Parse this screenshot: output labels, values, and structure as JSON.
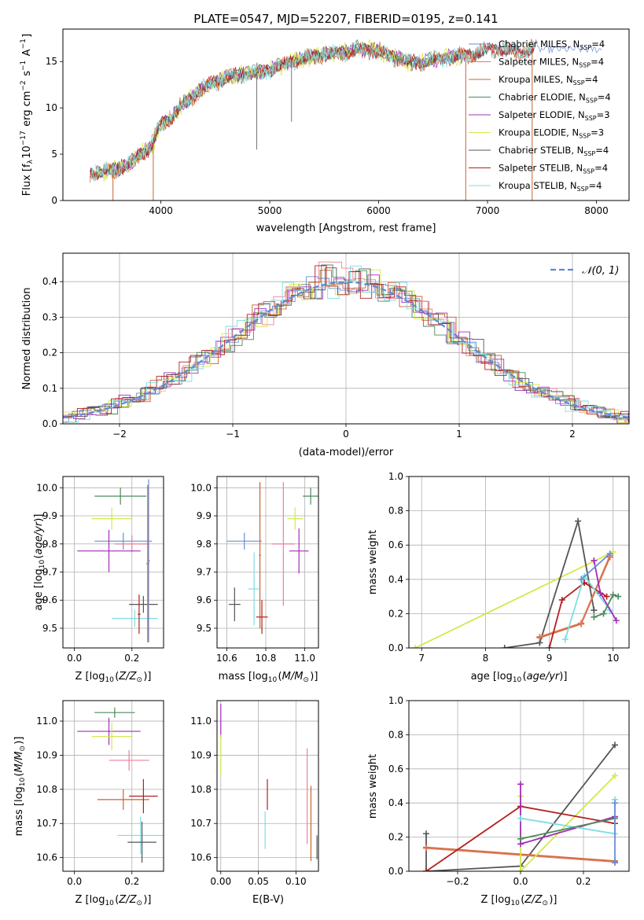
{
  "figure": {
    "title": "PLATE=0547, MJD=52207, FIBERID=0195, z=0.141"
  },
  "colors": {
    "Chabrier MILES": "#6b8ed6",
    "Salpeter MILES": "#e07a5f",
    "Kroupa MILES": "#c8642c",
    "Chabrier ELODIE": "#4c8a5a",
    "Salpeter ELODIE": "#a22fb8",
    "Kroupa ELODIE": "#d4e84a",
    "Chabrier STELIB": "#555555",
    "Salpeter STELIB": "#b22020",
    "Kroupa STELIB": "#7fdde0",
    "Salpeter MILES light": "#ef7f9b",
    "gauss": "#5b8ad6"
  },
  "chart_data": [
    {
      "id": "spectrum",
      "type": "line",
      "xlabel": "wavelength [Angstrom, rest frame]",
      "ylabel": "Flux [f",
      "ylabel_parts": [
        "Flux [f",
        "λ",
        "10",
        "−17",
        " erg cm",
        "−2",
        " s",
        "−1",
        " A",
        "−1",
        "]"
      ],
      "xlim": [
        3100,
        8300
      ],
      "ylim": [
        0,
        18.5
      ],
      "xticks": [
        4000,
        5000,
        6000,
        7000,
        8000
      ],
      "yticks": [
        0,
        5,
        10,
        15
      ],
      "grid": false,
      "legend_placement": "top-right",
      "legend": [
        {
          "name": "Chabrier MILES",
          "N": "4"
        },
        {
          "name": "Salpeter MILES",
          "N": "4"
        },
        {
          "name": "Kroupa MILES",
          "N": "4"
        },
        {
          "name": "Chabrier ELODIE",
          "N": "4"
        },
        {
          "name": "Salpeter ELODIE",
          "N": "3"
        },
        {
          "name": "Kroupa ELODIE",
          "N": "3"
        },
        {
          "name": "Chabrier STELIB",
          "N": "4"
        },
        {
          "name": "Salpeter STELIB",
          "N": "4"
        },
        {
          "name": "Kroupa STELIB",
          "N": "4"
        }
      ],
      "nssp_label": "N",
      "nssp_sub": "SSP",
      "continuum": {
        "x": [
          3350,
          3450,
          3600,
          3700,
          3800,
          3900,
          4000,
          4100,
          4200,
          4300,
          4400,
          4500,
          4600,
          4700,
          4800,
          4900,
          5000,
          5100,
          5200,
          5300,
          5400,
          5500,
          5600,
          5700,
          5800,
          5900,
          6000,
          6100,
          6200,
          6300,
          6400,
          6500,
          6600,
          6700,
          6800,
          6900,
          7000,
          7100,
          7200,
          7300,
          7400,
          7450
        ],
        "y": [
          3.0,
          3.0,
          3.5,
          3.8,
          5.0,
          5.6,
          8.2,
          9.0,
          10.4,
          11.3,
          12.2,
          12.8,
          13.3,
          13.5,
          13.8,
          13.8,
          14.1,
          14.6,
          15.0,
          15.3,
          15.5,
          15.8,
          15.9,
          16.0,
          16.3,
          16.3,
          16.1,
          15.6,
          15.3,
          14.9,
          14.9,
          15.2,
          15.4,
          15.5,
          15.7,
          15.9,
          16.2,
          16.5,
          16.2,
          16.0,
          16.3,
          17.0
        ]
      },
      "dips": [
        {
          "x": 3560,
          "y": 0
        },
        {
          "x": 3930,
          "y": 0
        },
        {
          "x": 6800,
          "y": 0
        },
        {
          "x": 7410,
          "y": 0
        }
      ],
      "spikes": [
        {
          "x": 4880,
          "y": 5.5
        },
        {
          "x": 5200,
          "y": 8.5
        }
      ]
    },
    {
      "id": "residuals",
      "type": "step",
      "xlabel": "(data-model)/error",
      "ylabel": "Normed distribution",
      "xlim": [
        -2.5,
        2.5
      ],
      "ylim": [
        0,
        0.48
      ],
      "xticks": [
        -2,
        -1,
        0,
        1,
        2
      ],
      "yticks": [
        0.0,
        0.1,
        0.2,
        0.3,
        0.4
      ],
      "grid": true,
      "legend": [
        {
          "name": "𝒩(0, 1)"
        }
      ],
      "bin_width": 0.1,
      "gaussian": {
        "mean": 0,
        "sigma": 1
      }
    },
    {
      "id": "age_vs_Z",
      "type": "errorbar",
      "xlabel": "Z [log",
      "ylabel": "age  [log",
      "xlim": [
        -0.04,
        0.31
      ],
      "ylim": [
        9.43,
        10.04
      ],
      "xticks": [
        0.0,
        0.2
      ],
      "yticks": [
        9.5,
        9.6,
        9.7,
        9.8,
        9.9,
        10.0
      ],
      "grid": true,
      "points": [
        {
          "series": "Chabrier ELODIE",
          "x": 0.16,
          "y": 9.97,
          "xe": 0.09,
          "ye": 0.03
        },
        {
          "series": "Kroupa ELODIE",
          "x": 0.13,
          "y": 9.89,
          "xe": 0.07,
          "ye": 0.04
        },
        {
          "series": "Chabrier MILES",
          "x": 0.17,
          "y": 9.81,
          "xe": 0.1,
          "ye": 0.03
        },
        {
          "series": "Salpeter MILES light",
          "x": 0.2,
          "y": 9.8,
          "xe": 0.06,
          "ye": 0.03
        },
        {
          "series": "Salpeter ELODIE",
          "x": 0.12,
          "y": 9.775,
          "xe": 0.11,
          "ye": 0.075
        },
        {
          "series": "Kroupa STELIB",
          "x": 0.21,
          "y": 9.535,
          "xe": 0.08,
          "ye": 0.03
        },
        {
          "series": "Chabrier STELIB",
          "x": 0.24,
          "y": 9.585,
          "xe": 0.05,
          "ye": 0.03
        },
        {
          "series": "Salpeter STELIB",
          "x": 0.225,
          "y": 9.55,
          "xe": 0.005,
          "ye": 0.07
        },
        {
          "series": "Kroupa MILES",
          "x": 0.255,
          "y": 9.73,
          "xe": 0.005,
          "ye": 0.28
        },
        {
          "series": "Chabrier MILES",
          "x": 0.258,
          "y": 9.74,
          "xe": 0.005,
          "ye": 0.29
        }
      ]
    },
    {
      "id": "age_vs_mass",
      "type": "errorbar",
      "xlabel": "mass [log",
      "ylabel": "",
      "xlim": [
        10.55,
        11.07
      ],
      "ylim": [
        9.43,
        10.04
      ],
      "xticks": [
        10.6,
        10.8,
        11.0
      ],
      "yticks": [
        9.5,
        9.6,
        9.7,
        9.8,
        9.9,
        10.0
      ],
      "grid": true,
      "points": [
        {
          "series": "Chabrier ELODIE",
          "x": 11.03,
          "y": 9.97,
          "xe": 0.04,
          "ye": 0.03
        },
        {
          "series": "Kroupa ELODIE",
          "x": 10.95,
          "y": 9.89,
          "xe": 0.04,
          "ye": 0.04
        },
        {
          "series": "Salpeter ELODIE",
          "x": 10.97,
          "y": 9.775,
          "xe": 0.05,
          "ye": 0.08
        },
        {
          "series": "Chabrier MILES",
          "x": 10.69,
          "y": 9.81,
          "xe": 0.09,
          "ye": 0.03
        },
        {
          "series": "Salpeter MILES light",
          "x": 10.89,
          "y": 9.8,
          "xe": 0.06,
          "ye": 0.22
        },
        {
          "series": "Kroupa MILES",
          "x": 10.77,
          "y": 9.76,
          "xe": 0.005,
          "ye": 0.26
        },
        {
          "series": "Kroupa STELIB",
          "x": 10.74,
          "y": 9.64,
          "xe": 0.03,
          "ye": 0.13
        },
        {
          "series": "Chabrier STELIB",
          "x": 10.64,
          "y": 9.585,
          "xe": 0.03,
          "ye": 0.06
        },
        {
          "series": "Salpeter STELIB",
          "x": 10.78,
          "y": 9.54,
          "xe": 0.03,
          "ye": 0.06
        }
      ]
    },
    {
      "id": "mw_vs_age",
      "type": "line",
      "xlabel": "age  [log",
      "ylabel": "mass weight",
      "xlim": [
        6.8,
        10.25
      ],
      "ylim": [
        0,
        1
      ],
      "xticks": [
        7,
        8,
        9,
        10
      ],
      "yticks": [
        0.0,
        0.2,
        0.4,
        0.6,
        0.8,
        1.0
      ],
      "grid": true,
      "series": [
        {
          "name": "Kroupa ELODIE",
          "x": [
            6.9,
            10.0
          ],
          "y": [
            0.0,
            0.56
          ]
        },
        {
          "name": "Chabrier STELIB",
          "x": [
            8.3,
            8.85,
            9.45,
            9.7
          ],
          "y": [
            0.0,
            0.03,
            0.74,
            0.22
          ]
        },
        {
          "name": "Kroupa MILES",
          "x": [
            8.85,
            9.5,
            9.95
          ],
          "y": [
            0.06,
            0.14,
            0.53
          ]
        },
        {
          "name": "Salpeter MILES",
          "x": [
            8.85,
            9.5,
            9.95
          ],
          "y": [
            0.065,
            0.145,
            0.54
          ]
        },
        {
          "name": "Salpeter STELIB",
          "x": [
            9.0,
            9.2,
            9.55,
            9.9
          ],
          "y": [
            0.0,
            0.28,
            0.38,
            0.3
          ]
        },
        {
          "name": "Kroupa STELIB",
          "x": [
            9.25,
            9.55,
            9.95
          ],
          "y": [
            0.05,
            0.42,
            0.22
          ]
        },
        {
          "name": "Salpeter ELODIE",
          "x": [
            9.7,
            9.8,
            10.05
          ],
          "y": [
            0.51,
            0.32,
            0.16
          ]
        },
        {
          "name": "Chabrier ELODIE",
          "x": [
            9.7,
            9.85,
            10.0,
            10.08
          ],
          "y": [
            0.18,
            0.2,
            0.31,
            0.3
          ]
        },
        {
          "name": "Chabrier MILES",
          "x": [
            9.5,
            9.95
          ],
          "y": [
            0.4,
            0.55
          ]
        }
      ]
    },
    {
      "id": "mass_vs_Z",
      "type": "errorbar",
      "xlabel": "Z [log",
      "ylabel": "mass [log",
      "xlim": [
        -0.04,
        0.31
      ],
      "ylim": [
        10.56,
        11.06
      ],
      "xticks": [
        0.0,
        0.2
      ],
      "yticks": [
        10.6,
        10.7,
        10.8,
        10.9,
        11.0
      ],
      "grid": true,
      "points": [
        {
          "series": "Chabrier ELODIE",
          "x": 0.14,
          "y": 11.025,
          "xe": 0.07,
          "ye": 0.015
        },
        {
          "series": "Salpeter ELODIE",
          "x": 0.12,
          "y": 10.97,
          "xe": 0.11,
          "ye": 0.04
        },
        {
          "series": "Kroupa ELODIE",
          "x": 0.13,
          "y": 10.955,
          "xe": 0.07,
          "ye": 0.04
        },
        {
          "series": "Salpeter MILES light",
          "x": 0.19,
          "y": 10.885,
          "xe": 0.07,
          "ye": 0.03
        },
        {
          "series": "Kroupa MILES",
          "x": 0.17,
          "y": 10.77,
          "xe": 0.09,
          "ye": 0.03
        },
        {
          "series": "Salpeter STELIB",
          "x": 0.24,
          "y": 10.78,
          "xe": 0.05,
          "ye": 0.05
        },
        {
          "series": "Kroupa STELIB",
          "x": 0.23,
          "y": 10.665,
          "xe": 0.08,
          "ye": 0.055
        },
        {
          "series": "Chabrier STELIB",
          "x": 0.235,
          "y": 10.645,
          "xe": 0.05,
          "ye": 0.06
        }
      ]
    },
    {
      "id": "mass_vs_ebv",
      "type": "errorbar",
      "xlabel": "E(B-V)",
      "ylabel": "",
      "xlim": [
        -0.005,
        0.13
      ],
      "ylim": [
        10.56,
        11.06
      ],
      "xticks": [
        0.0,
        0.05,
        0.1
      ],
      "xtick_labels": [
        "0.00",
        "0.05",
        "0.10"
      ],
      "yticks": [
        10.6,
        10.7,
        10.8,
        10.9,
        11.0
      ],
      "grid": true,
      "points": [
        {
          "series": "Salpeter ELODIE",
          "x": 0.0,
          "y": 11.0,
          "xe": 0.0005,
          "ye": 0.05
        },
        {
          "series": "Kroupa ELODIE",
          "x": 0.0,
          "y": 10.9,
          "xe": 0.0005,
          "ye": 0.06
        },
        {
          "series": "Salpeter STELIB",
          "x": 0.062,
          "y": 10.785,
          "xe": 0.0005,
          "ye": 0.045
        },
        {
          "series": "Kroupa STELIB",
          "x": 0.059,
          "y": 10.68,
          "xe": 0.0005,
          "ye": 0.055
        },
        {
          "series": "Salpeter MILES light",
          "x": 0.115,
          "y": 10.78,
          "xe": 0.0005,
          "ye": 0.14
        },
        {
          "series": "Kroupa MILES",
          "x": 0.12,
          "y": 10.7,
          "xe": 0.0005,
          "ye": 0.11
        },
        {
          "series": "Chabrier STELIB",
          "x": 0.128,
          "y": 10.63,
          "xe": 0.0005,
          "ye": 0.035
        }
      ]
    },
    {
      "id": "mw_vs_Z",
      "type": "line",
      "xlabel": "Z [log",
      "ylabel": "mass weight",
      "xlim": [
        -0.355,
        0.345
      ],
      "ylim": [
        0,
        1
      ],
      "xticks": [
        -0.2,
        0.0,
        0.2
      ],
      "yticks": [
        0.0,
        0.2,
        0.4,
        0.6,
        0.8,
        1.0
      ],
      "grid": true,
      "series": [
        {
          "name": "Chabrier STELIB",
          "x": [
            -0.3,
            -0.3,
            0.0,
            0.3
          ],
          "y": [
            0.22,
            0.0,
            0.03,
            0.74
          ]
        },
        {
          "name": "Kroupa MILES",
          "x": [
            -0.3,
            0.3
          ],
          "y": [
            0.14,
            0.06
          ]
        },
        {
          "name": "Salpeter MILES",
          "x": [
            -0.3,
            0.3
          ],
          "y": [
            0.135,
            0.055
          ]
        },
        {
          "name": "Kroupa ELODIE",
          "x": [
            0.0,
            0.0,
            0.3
          ],
          "y": [
            0.44,
            0.0,
            0.56
          ]
        },
        {
          "name": "Salpeter STELIB",
          "x": [
            -0.3,
            0.0,
            0.3
          ],
          "y": [
            0.0,
            0.38,
            0.28
          ]
        },
        {
          "name": "Salpeter ELODIE",
          "x": [
            0.0,
            0.0,
            0.3
          ],
          "y": [
            0.51,
            0.16,
            0.32
          ]
        },
        {
          "name": "Kroupa STELIB",
          "x": [
            0.0,
            0.3,
            0.3
          ],
          "y": [
            0.31,
            0.22,
            0.42
          ]
        },
        {
          "name": "Chabrier ELODIE",
          "x": [
            0.0,
            0.3
          ],
          "y": [
            0.19,
            0.31
          ]
        },
        {
          "name": "Chabrier MILES",
          "x": [
            0.3,
            0.3
          ],
          "y": [
            0.05,
            0.4
          ]
        }
      ]
    }
  ]
}
